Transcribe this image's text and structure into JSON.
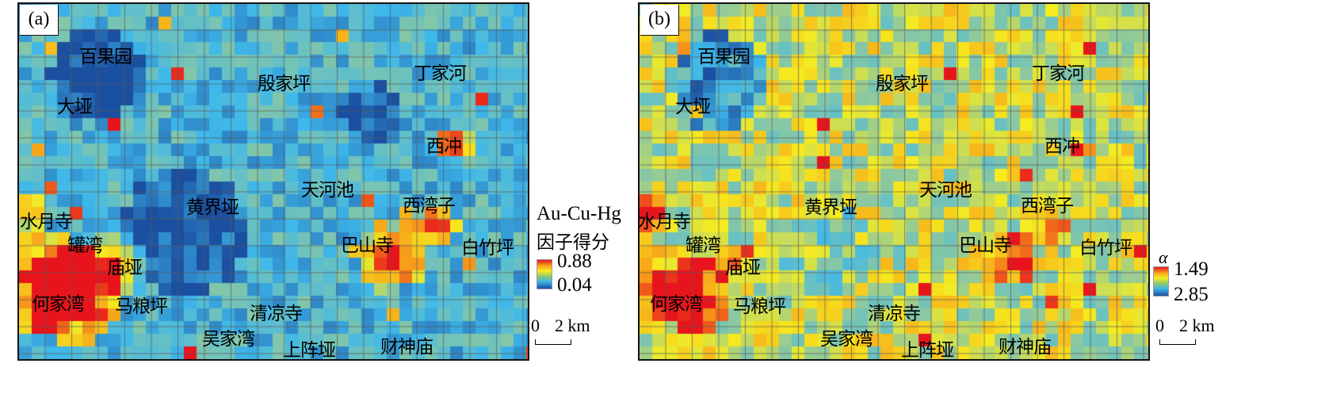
{
  "panels": [
    {
      "tag": "(a)",
      "places": [
        "百果园",
        "殷家坪",
        "丁家河",
        "大垭",
        "西冲",
        "天河池",
        "黄界垭",
        "西湾子",
        "水月寺",
        "罐湾",
        "巴山寺",
        "白竹坪",
        "庙垭",
        "何家湾",
        "马粮坪",
        "清凉寺",
        "吴家湾",
        "上阵垭",
        "财神庙"
      ],
      "legend": {
        "title_line1": "Au-Cu-Hg",
        "title_line2": "因子得分",
        "max": "0.88",
        "min": "0.04",
        "colormap": "red-yellow-green-cyan-blue"
      },
      "scale": {
        "zero": "0",
        "value": "2 km"
      }
    },
    {
      "tag": "(b)",
      "places": [
        "百果园",
        "殷家坪",
        "丁家河",
        "大垭",
        "西冲",
        "天河池",
        "黄界垭",
        "西湾子",
        "水月寺",
        "罐湾",
        "巴山寺",
        "白竹坪",
        "庙垭",
        "何家湾",
        "马粮坪",
        "清凉寺",
        "吴家湾",
        "上阵垭",
        "财神庙"
      ],
      "legend": {
        "title": "α",
        "max": "1.49",
        "min": "2.85",
        "colormap": "red-yellow-green-cyan-blue"
      },
      "scale": {
        "zero": "0",
        "value": "2 km"
      }
    }
  ]
}
